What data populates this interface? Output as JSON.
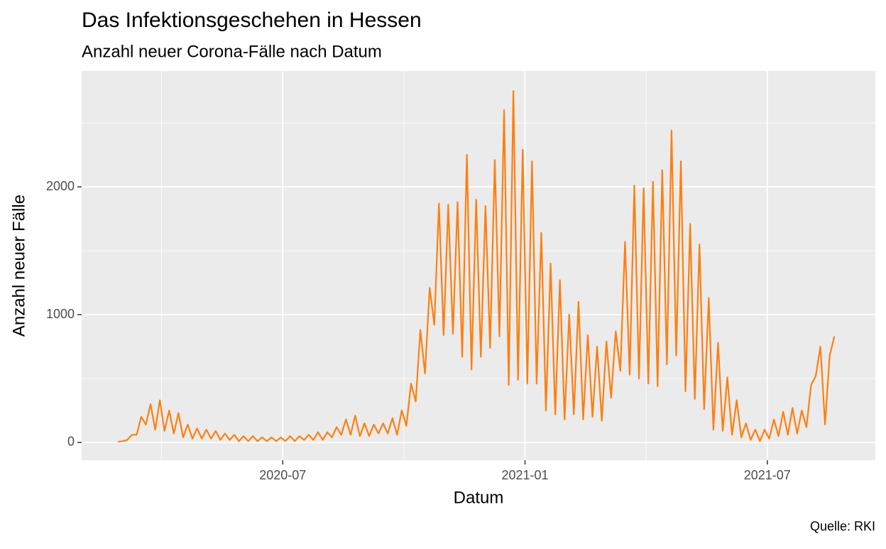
{
  "chart_data": {
    "type": "line",
    "title": "Das Infektionsgeschehen in Hessen",
    "subtitle": "Anzahl neuer Corona-Fälle nach Datum",
    "caption": "Quelle: RKI",
    "x_label": "Datum",
    "y_label": "Anzahl neuer Fälle",
    "color": "#ff7f0e",
    "grid": true,
    "xlim": [
      2020.085,
      2021.723
    ],
    "ylim": [
      -139,
      2906
    ],
    "xticks": [
      {
        "value": 2020.5,
        "label": "2020-07"
      },
      {
        "value": 2021.0,
        "label": "2021-01"
      },
      {
        "value": 2021.5,
        "label": "2021-07"
      }
    ],
    "xminor": [
      2020.25,
      2020.75,
      2021.25
    ],
    "yticks": [
      0,
      1000,
      2000
    ],
    "yminor": [
      500,
      1500,
      2500
    ],
    "x": [
      2020.16,
      2020.1696,
      2020.1792,
      2020.1888,
      2020.1984,
      2020.208,
      2020.2176,
      2020.2272,
      2020.2368,
      2020.2464,
      2020.256,
      2020.2656,
      2020.2752,
      2020.2848,
      2020.2944,
      2020.304,
      2020.3136,
      2020.3232,
      2020.3328,
      2020.3424,
      2020.352,
      2020.3616,
      2020.3712,
      2020.3808,
      2020.3904,
      2020.4,
      2020.4096,
      2020.4192,
      2020.4288,
      2020.4384,
      2020.448,
      2020.4576,
      2020.4672,
      2020.4768,
      2020.4864,
      2020.496,
      2020.5056,
      2020.5152,
      2020.5248,
      2020.5344,
      2020.544,
      2020.5536,
      2020.5632,
      2020.5728,
      2020.5824,
      2020.592,
      2020.6016,
      2020.6112,
      2020.6208,
      2020.6304,
      2020.64,
      2020.6496,
      2020.6592,
      2020.6688,
      2020.6784,
      2020.688,
      2020.6976,
      2020.7072,
      2020.7168,
      2020.7264,
      2020.736,
      2020.7456,
      2020.7552,
      2020.7648,
      2020.7744,
      2020.784,
      2020.7936,
      2020.8032,
      2020.8128,
      2020.8224,
      2020.832,
      2020.8416,
      2020.8512,
      2020.8608,
      2020.8704,
      2020.88,
      2020.8896,
      2020.8992,
      2020.9088,
      2020.9184,
      2020.928,
      2020.9376,
      2020.9472,
      2020.9568,
      2020.9664,
      2020.976,
      2020.9856,
      2020.9952,
      2021.0048,
      2021.0144,
      2021.024,
      2021.0336,
      2021.0432,
      2021.0528,
      2021.0624,
      2021.072,
      2021.0816,
      2021.0912,
      2021.1008,
      2021.1104,
      2021.12,
      2021.1296,
      2021.1392,
      2021.1488,
      2021.1584,
      2021.168,
      2021.1776,
      2021.1872,
      2021.1968,
      2021.2064,
      2021.216,
      2021.2256,
      2021.2352,
      2021.2448,
      2021.2544,
      2021.264,
      2021.2736,
      2021.2832,
      2021.2928,
      2021.3024,
      2021.312,
      2021.3216,
      2021.3312,
      2021.3408,
      2021.3504,
      2021.36,
      2021.3696,
      2021.3792,
      2021.3888,
      2021.3984,
      2021.408,
      2021.4176,
      2021.4272,
      2021.4368,
      2021.4464,
      2021.456,
      2021.4656,
      2021.4752,
      2021.4848,
      2021.4944,
      2021.504,
      2021.5136,
      2021.5232,
      2021.5328,
      2021.5424,
      2021.552,
      2021.5616,
      2021.5712,
      2021.5808,
      2021.5904,
      2021.6,
      2021.6096,
      2021.6192,
      2021.6288,
      2021.6384
    ],
    "values": [
      5,
      10,
      20,
      60,
      60,
      200,
      140,
      300,
      100,
      330,
      90,
      250,
      70,
      230,
      40,
      140,
      30,
      110,
      30,
      100,
      30,
      90,
      20,
      70,
      20,
      60,
      10,
      50,
      10,
      50,
      10,
      40,
      10,
      40,
      10,
      40,
      10,
      50,
      10,
      50,
      20,
      60,
      20,
      80,
      20,
      80,
      40,
      120,
      60,
      180,
      60,
      210,
      50,
      150,
      50,
      140,
      70,
      150,
      70,
      190,
      60,
      250,
      130,
      460,
      320,
      880,
      540,
      1210,
      920,
      1870,
      840,
      1860,
      850,
      1880,
      670,
      2250,
      570,
      1900,
      670,
      1850,
      740,
      2210,
      830,
      2600,
      450,
      2750,
      490,
      2290,
      460,
      2200,
      460,
      1640,
      250,
      1400,
      220,
      1270,
      180,
      1000,
      220,
      1100,
      180,
      840,
      200,
      750,
      170,
      790,
      350,
      870,
      560,
      1570,
      530,
      2010,
      500,
      1990,
      460,
      2040,
      440,
      2130,
      610,
      2440,
      680,
      2200,
      400,
      1710,
      340,
      1550,
      260,
      1130,
      100,
      780,
      90,
      510,
      60,
      330,
      40,
      150,
      20,
      100,
      10,
      100,
      30,
      180,
      50,
      240,
      60,
      270,
      70,
      250,
      120,
      450,
      520,
      750,
      140,
      680,
      830
    ]
  }
}
